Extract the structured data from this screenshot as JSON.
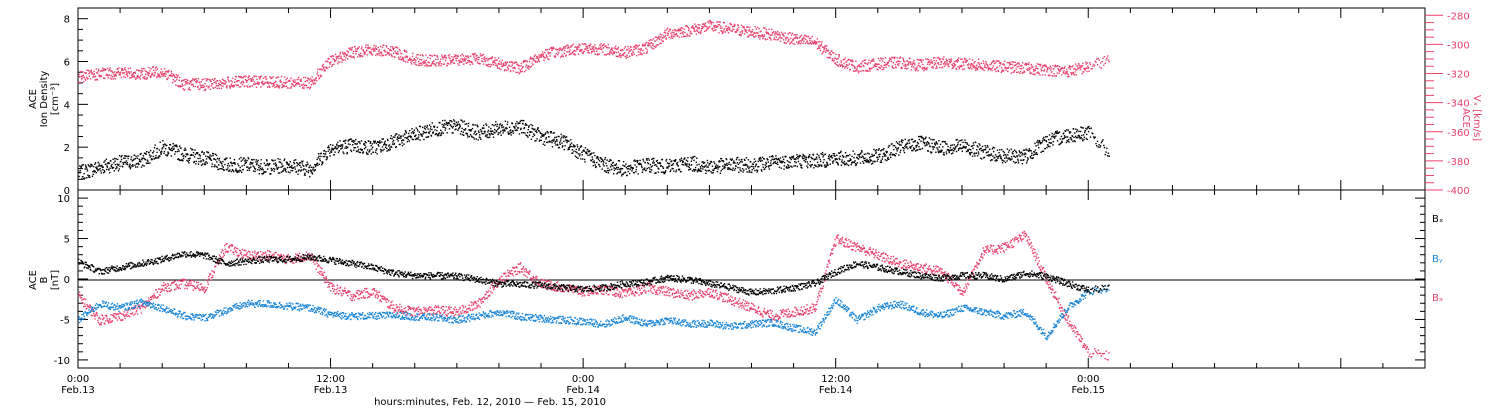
{
  "colors": {
    "black": "#000000",
    "pink": "#e8426c",
    "blue": "#1a86d8"
  },
  "time_axis": {
    "xlabel": "hours:minutes, Feb. 12, 2010 — Feb. 15, 2010",
    "range_hours": [
      0,
      64
    ],
    "major_ticks": [
      {
        "hours": 0,
        "time": "0:00",
        "date": "Feb.13"
      },
      {
        "hours": 12,
        "time": "12:00",
        "date": "Feb.13"
      },
      {
        "hours": 24,
        "time": "0:00",
        "date": "Feb.14"
      },
      {
        "hours": 36,
        "time": "12:00",
        "date": "Feb.14"
      },
      {
        "hours": 48,
        "time": "0:00",
        "date": "Feb.15"
      }
    ]
  },
  "chart_data": [
    {
      "type": "scatter",
      "panel": "top",
      "ylabel_left": [
        "ACE",
        "Ion Density",
        "[cm⁻³]"
      ],
      "ylabel_right": [
        "ACE",
        "Vₓ [km/s]"
      ],
      "ylim_left": [
        0,
        8.5
      ],
      "yticks_left": [
        0,
        2,
        4,
        6,
        8
      ],
      "ylim_right": [
        -400,
        -275
      ],
      "yticks_right": [
        -400,
        -380,
        -360,
        -340,
        -320,
        -300,
        -280
      ],
      "series": [
        {
          "axis": "left",
          "color": "#000000",
          "x": [
            0,
            1,
            2,
            3,
            4,
            5,
            6,
            7,
            8,
            9,
            10,
            11,
            12,
            13,
            14,
            15,
            16,
            17,
            18,
            19,
            20,
            21,
            22,
            23,
            24,
            25,
            26,
            27,
            28,
            29,
            30,
            31,
            32,
            33,
            34,
            35,
            36,
            37,
            38,
            39,
            40,
            41,
            42,
            43,
            44,
            45,
            46,
            47,
            48,
            49
          ],
          "y": [
            0.8,
            1.1,
            1.3,
            1.4,
            2.0,
            1.7,
            1.5,
            1.2,
            1.2,
            1.1,
            1.2,
            1.0,
            2.0,
            2.1,
            2.0,
            2.3,
            2.6,
            2.9,
            3.0,
            2.7,
            2.9,
            3.0,
            2.5,
            2.3,
            1.7,
            1.2,
            1.0,
            1.2,
            1.1,
            1.3,
            1.1,
            1.2,
            1.2,
            1.3,
            1.4,
            1.4,
            1.5,
            1.5,
            1.6,
            2.0,
            2.2,
            2.0,
            2.1,
            1.8,
            1.6,
            1.6,
            2.3,
            2.6,
            2.7,
            1.7
          ]
        },
        {
          "axis": "right",
          "color": "#e8426c",
          "x": [
            0,
            1,
            2,
            3,
            4,
            5,
            6,
            7,
            8,
            9,
            10,
            11,
            12,
            13,
            14,
            15,
            16,
            17,
            18,
            19,
            20,
            21,
            22,
            23,
            24,
            25,
            26,
            27,
            28,
            29,
            30,
            31,
            32,
            33,
            34,
            35,
            36,
            37,
            38,
            39,
            40,
            41,
            42,
            43,
            44,
            45,
            46,
            47,
            48,
            49
          ],
          "y": [
            -322,
            -320,
            -319,
            -320,
            -318,
            -327,
            -327,
            -326,
            -325,
            -325,
            -326,
            -326,
            -311,
            -305,
            -303,
            -305,
            -310,
            -311,
            -310,
            -309,
            -313,
            -316,
            -307,
            -304,
            -302,
            -303,
            -305,
            -302,
            -292,
            -290,
            -287,
            -289,
            -291,
            -293,
            -296,
            -298,
            -310,
            -315,
            -313,
            -312,
            -314,
            -312,
            -313,
            -314,
            -315,
            -316,
            -317,
            -318,
            -315,
            -310
          ]
        }
      ]
    },
    {
      "type": "scatter",
      "panel": "bottom",
      "ylabel_left": [
        "ACE",
        "B",
        "[nT]"
      ],
      "ylim": [
        -11,
        11
      ],
      "yticks": [
        -10,
        -5,
        0,
        5,
        10
      ],
      "zero_line": true,
      "legend": [
        {
          "label": "Bₓ",
          "color": "#000000"
        },
        {
          "label": "Bᵧ",
          "color": "#1a86d8"
        },
        {
          "label": "Bₔ",
          "color": "#e8426c"
        }
      ],
      "series": [
        {
          "name": "Bₓ",
          "color": "#000000",
          "x": [
            0,
            1,
            2,
            3,
            4,
            5,
            6,
            7,
            8,
            9,
            10,
            11,
            12,
            13,
            14,
            15,
            16,
            17,
            18,
            19,
            20,
            21,
            22,
            23,
            24,
            25,
            26,
            27,
            28,
            29,
            30,
            31,
            32,
            33,
            34,
            35,
            36,
            37,
            38,
            39,
            40,
            41,
            42,
            43,
            44,
            45,
            46,
            47,
            48,
            49
          ],
          "y": [
            2.2,
            1.0,
            1.5,
            2.0,
            2.5,
            3.2,
            3.0,
            2.0,
            2.3,
            2.5,
            2.5,
            2.8,
            2.4,
            2.0,
            1.5,
            0.8,
            0.5,
            0.5,
            0.4,
            0.0,
            -0.5,
            -0.6,
            -0.7,
            -1.0,
            -1.2,
            -1.0,
            -0.5,
            -0.3,
            0.2,
            0.0,
            -0.5,
            -1.0,
            -1.6,
            -1.4,
            -1.0,
            -0.5,
            1.0,
            2.0,
            1.5,
            1.0,
            0.5,
            0.2,
            0.5,
            0.5,
            0.0,
            0.8,
            0.4,
            -0.5,
            -1.3,
            -1.0
          ]
        },
        {
          "name": "Bᵧ",
          "color": "#1a86d8",
          "x": [
            0,
            1,
            2,
            3,
            4,
            5,
            6,
            7,
            8,
            9,
            10,
            11,
            12,
            13,
            14,
            15,
            16,
            17,
            18,
            19,
            20,
            21,
            22,
            23,
            24,
            25,
            26,
            27,
            28,
            29,
            30,
            31,
            32,
            33,
            34,
            35,
            36,
            37,
            38,
            39,
            40,
            41,
            42,
            43,
            44,
            45,
            46,
            47,
            48,
            49
          ],
          "y": [
            -5.0,
            -3.0,
            -3.5,
            -2.8,
            -3.5,
            -4.5,
            -4.7,
            -3.8,
            -3.0,
            -3.0,
            -3.3,
            -3.5,
            -4.3,
            -4.5,
            -4.5,
            -4.4,
            -4.6,
            -4.7,
            -5.0,
            -4.5,
            -4.0,
            -4.6,
            -4.8,
            -5.0,
            -5.2,
            -5.5,
            -4.7,
            -5.5,
            -5.0,
            -5.5,
            -5.4,
            -5.8,
            -5.5,
            -5.3,
            -6.0,
            -6.5,
            -2.5,
            -5.0,
            -3.5,
            -3.0,
            -4.0,
            -4.5,
            -3.5,
            -4.0,
            -4.5,
            -4.0,
            -7.0,
            -3.5,
            -1.5,
            -1.0
          ]
        },
        {
          "name": "Bₔ",
          "color": "#e8426c",
          "x": [
            0,
            1,
            2,
            3,
            4,
            5,
            6,
            7,
            8,
            9,
            10,
            11,
            12,
            13,
            14,
            15,
            16,
            17,
            18,
            19,
            20,
            21,
            22,
            23,
            24,
            25,
            26,
            27,
            28,
            29,
            30,
            31,
            32,
            33,
            34,
            35,
            36,
            37,
            38,
            39,
            40,
            41,
            42,
            43,
            44,
            45,
            46,
            47,
            48,
            49
          ],
          "y": [
            -2.0,
            -5.0,
            -4.5,
            -3.5,
            -1.0,
            -0.5,
            -1.0,
            4.0,
            3.0,
            3.0,
            2.5,
            3.0,
            -1.0,
            -2.0,
            -1.5,
            -3.5,
            -4.0,
            -3.8,
            -4.0,
            -3.0,
            0.0,
            1.5,
            -0.5,
            -1.0,
            -1.5,
            -1.2,
            -1.8,
            -1.0,
            -1.5,
            -2.0,
            -1.5,
            -2.5,
            -3.5,
            -4.5,
            -4.0,
            -3.5,
            5.0,
            4.0,
            3.0,
            2.0,
            1.5,
            1.0,
            -1.5,
            3.5,
            4.0,
            5.5,
            0.0,
            -5.0,
            -9.0,
            -9.5
          ]
        }
      ]
    }
  ]
}
